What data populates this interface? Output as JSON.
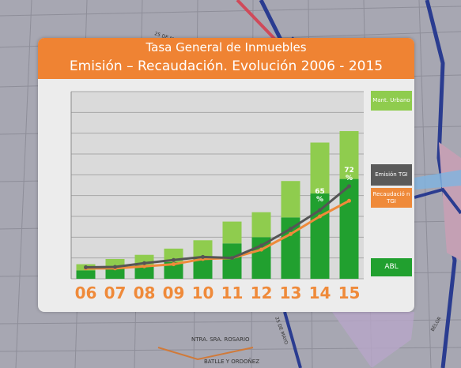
{
  "map": {
    "labels": [
      "25 DE MAYO",
      "NTRA. SRA. ROSARIO",
      "BATLLE Y ORDOÑEZ",
      "25 DE MAYO",
      "BELGR"
    ]
  },
  "slide": {
    "title_line1": "Tasa General de Inmuebles",
    "title_line2": "Emisión – Recaudación. Evolución 2006 - 2015"
  },
  "colors": {
    "title_bar": "#ef8333",
    "abl": "#21a02f",
    "mant_urbano": "#8fcc4e",
    "emision": "#555555",
    "recaudacion": "#ef8a3a",
    "tick_label": "#ef8a3a"
  },
  "chart_data": {
    "type": "bar",
    "stacked": true,
    "categories": [
      "06",
      "07",
      "08",
      "09",
      "10",
      "11",
      "12",
      "13",
      "14",
      "15"
    ],
    "ylim": [
      0,
      9
    ],
    "grid": true,
    "legend_position": "right",
    "series": [
      {
        "name": "ABL",
        "kind": "bar",
        "values": [
          0.4,
          0.5,
          0.65,
          0.8,
          1.0,
          1.7,
          2.0,
          2.95,
          4.1,
          4.8
        ]
      },
      {
        "name": "Mant. Urbano",
        "kind": "bar",
        "values": [
          0.3,
          0.45,
          0.5,
          0.65,
          0.85,
          1.05,
          1.2,
          1.75,
          2.45,
          2.3
        ]
      },
      {
        "name": "Emisión TGI",
        "kind": "line",
        "values": [
          0.55,
          0.57,
          0.75,
          0.9,
          1.05,
          1.0,
          1.6,
          2.4,
          3.3,
          4.45
        ]
      },
      {
        "name": "Recaudación TGI",
        "kind": "line",
        "values": [
          0.5,
          0.5,
          0.6,
          0.7,
          0.95,
          1.0,
          1.4,
          2.15,
          3.0,
          3.75
        ]
      }
    ],
    "annotations": [
      {
        "category": "14",
        "text": "65 %"
      },
      {
        "category": "15",
        "text": "72 %"
      }
    ]
  },
  "legend": {
    "mant_urbano": "Mant. Urbano",
    "emision": "Emisión TGI",
    "recaudacion": "Recaudació n TGI",
    "abl": "ABL"
  }
}
